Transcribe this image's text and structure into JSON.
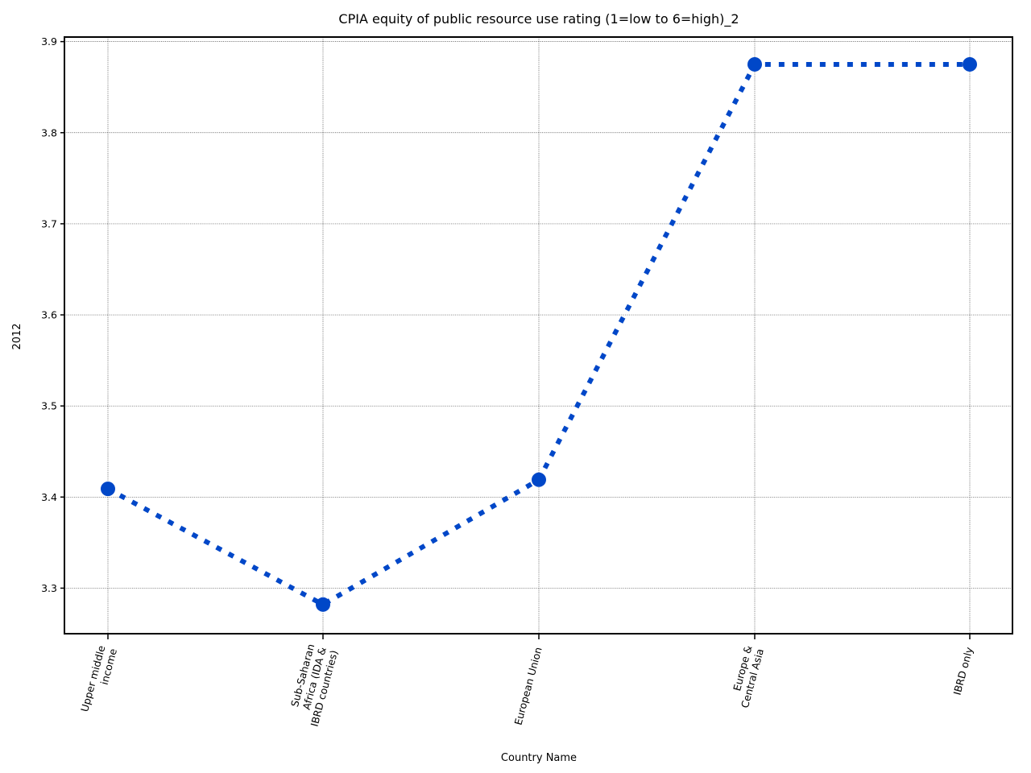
{
  "chart_data": {
    "type": "line",
    "title": "CPIA equity of public resource use rating (1=low to 6=high)_2",
    "xlabel": "Country Name",
    "ylabel": "2012",
    "categories": [
      "Upper middle income",
      "Sub-Saharan Africa (IDA & IBRD countries)",
      "European Union",
      "Europe & Central Asia",
      "IBRD only"
    ],
    "category_tick_lines": [
      [
        "Upper middle",
        "income"
      ],
      [
        "Sub-Saharan",
        "Africa (IDA &",
        "IBRD countries)"
      ],
      [
        "European Union"
      ],
      [
        "Europe &",
        "Central Asia"
      ],
      [
        "IBRD only"
      ]
    ],
    "series": [
      {
        "values": [
          3.409,
          3.282,
          3.419,
          3.875,
          3.875
        ]
      }
    ],
    "ylim": [
      3.25,
      3.905
    ],
    "yticks": [
      3.3,
      3.4,
      3.5,
      3.6,
      3.7,
      3.8,
      3.9
    ],
    "ytick_labels": [
      "3.3",
      "3.4",
      "3.5",
      "3.6",
      "3.7",
      "3.8",
      "3.9"
    ],
    "grid": true,
    "line_style": "dotted",
    "marker": "circle",
    "color": "#0047c8"
  }
}
